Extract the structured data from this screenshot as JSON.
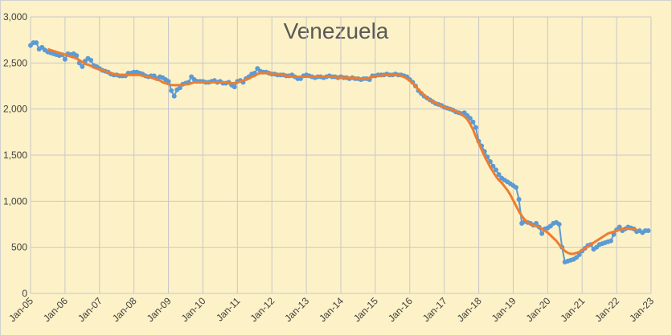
{
  "chart_data": {
    "type": "line",
    "title": "Venezuela",
    "categories": [
      "Jan-05",
      null,
      null,
      null,
      null,
      null,
      null,
      null,
      null,
      null,
      null,
      null,
      "Jan-06",
      null,
      null,
      null,
      null,
      null,
      null,
      null,
      null,
      null,
      null,
      null,
      "Jan-07",
      null,
      null,
      null,
      null,
      null,
      null,
      null,
      null,
      null,
      null,
      null,
      "Jan-08",
      null,
      null,
      null,
      null,
      null,
      null,
      null,
      null,
      null,
      null,
      null,
      "Jan-09",
      null,
      null,
      null,
      null,
      null,
      null,
      null,
      null,
      null,
      null,
      null,
      "Jan-10",
      null,
      null,
      null,
      null,
      null,
      null,
      null,
      null,
      null,
      null,
      null,
      "Jan-11",
      null,
      null,
      null,
      null,
      null,
      null,
      null,
      null,
      null,
      null,
      null,
      "Jan-12",
      null,
      null,
      null,
      null,
      null,
      null,
      null,
      null,
      null,
      null,
      null,
      "Jan-13",
      null,
      null,
      null,
      null,
      null,
      null,
      null,
      null,
      null,
      null,
      null,
      "Jan-14",
      null,
      null,
      null,
      null,
      null,
      null,
      null,
      null,
      null,
      null,
      null,
      "Jan-15",
      null,
      null,
      null,
      null,
      null,
      null,
      null,
      null,
      null,
      null,
      null,
      "Jan-16",
      null,
      null,
      null,
      null,
      null,
      null,
      null,
      null,
      null,
      null,
      null,
      "Jan-17",
      null,
      null,
      null,
      null,
      null,
      null,
      null,
      null,
      null,
      null,
      null,
      "Jan-18",
      null,
      null,
      null,
      null,
      null,
      null,
      null,
      null,
      null,
      null,
      null,
      "Jan-19",
      null,
      null,
      null,
      null,
      null,
      null,
      null,
      null,
      null,
      null,
      null,
      "Jan-20",
      null,
      null,
      null,
      null,
      null,
      null,
      null,
      null,
      null,
      null,
      null,
      "Jan-21",
      null,
      null,
      null,
      null,
      null,
      null,
      null,
      null,
      null,
      null,
      null,
      "Jan-22",
      null,
      null,
      null,
      null,
      null,
      null,
      null,
      null,
      null,
      null,
      null,
      "Jan-23"
    ],
    "series": [
      {
        "color": "#5b9bd5",
        "markers": true,
        "values": [
          2690,
          2720,
          2720,
          2650,
          2670,
          2640,
          2620,
          2610,
          2600,
          2590,
          2580,
          2590,
          2540,
          2600,
          2590,
          2600,
          2580,
          2500,
          2460,
          2520,
          2550,
          2530,
          2470,
          2460,
          2440,
          2420,
          2410,
          2400,
          2380,
          2370,
          2370,
          2360,
          2360,
          2360,
          2390,
          2390,
          2400,
          2400,
          2390,
          2380,
          2360,
          2350,
          2360,
          2360,
          2330,
          2350,
          2340,
          2320,
          2300,
          2200,
          2140,
          2210,
          2230,
          2270,
          2280,
          2290,
          2350,
          2320,
          2300,
          2300,
          2300,
          2290,
          2290,
          2300,
          2310,
          2290,
          2300,
          2280,
          2280,
          2290,
          2260,
          2240,
          2300,
          2310,
          2290,
          2330,
          2350,
          2380,
          2390,
          2440,
          2410,
          2400,
          2400,
          2390,
          2380,
          2380,
          2370,
          2370,
          2370,
          2360,
          2360,
          2370,
          2350,
          2330,
          2330,
          2360,
          2370,
          2360,
          2350,
          2340,
          2350,
          2350,
          2340,
          2350,
          2360,
          2350,
          2350,
          2340,
          2350,
          2340,
          2340,
          2330,
          2340,
          2330,
          2330,
          2320,
          2330,
          2330,
          2320,
          2360,
          2360,
          2370,
          2370,
          2370,
          2380,
          2370,
          2370,
          2380,
          2370,
          2370,
          2360,
          2350,
          2320,
          2290,
          2250,
          2200,
          2170,
          2140,
          2120,
          2100,
          2080,
          2060,
          2050,
          2040,
          2020,
          2010,
          2000,
          1990,
          1970,
          1960,
          1950,
          1960,
          1930,
          1900,
          1860,
          1800,
          1650,
          1600,
          1540,
          1480,
          1430,
          1380,
          1340,
          1290,
          1250,
          1230,
          1210,
          1190,
          1170,
          1150,
          1020,
          760,
          780,
          770,
          760,
          740,
          760,
          720,
          650,
          700,
          710,
          730,
          760,
          770,
          750,
          500,
          340,
          350,
          360,
          370,
          390,
          420,
          460,
          490,
          520,
          530,
          480,
          500,
          530,
          540,
          550,
          560,
          570,
          640,
          690,
          720,
          680,
          700,
          720,
          710,
          700,
          670,
          680,
          660,
          680,
          680,
          null
        ]
      },
      {
        "color": "#ed7d31",
        "markers": false,
        "values": [
          null,
          null,
          null,
          null,
          null,
          null,
          2650,
          2640,
          2630,
          2620,
          2610,
          2600,
          2590,
          2580,
          2570,
          2560,
          2550,
          2530,
          2510,
          2490,
          2480,
          2470,
          2450,
          2440,
          2430,
          2420,
          2410,
          2400,
          2390,
          2380,
          2370,
          2370,
          2370,
          2370,
          2370,
          2370,
          2370,
          2370,
          2370,
          2360,
          2360,
          2350,
          2340,
          2330,
          2320,
          2310,
          2290,
          2280,
          2270,
          2260,
          2260,
          2260,
          2260,
          2260,
          2270,
          2270,
          2280,
          2290,
          2290,
          2290,
          2290,
          2290,
          2290,
          2290,
          2290,
          2290,
          2290,
          2290,
          2290,
          2280,
          2280,
          2280,
          2290,
          2300,
          2310,
          2320,
          2330,
          2350,
          2360,
          2380,
          2390,
          2390,
          2390,
          2390,
          2380,
          2380,
          2380,
          2370,
          2370,
          2360,
          2360,
          2350,
          2350,
          2350,
          2350,
          2350,
          2350,
          2350,
          2350,
          2350,
          2350,
          2350,
          2350,
          2350,
          2350,
          2350,
          2350,
          2340,
          2340,
          2340,
          2340,
          2340,
          2340,
          2340,
          2330,
          2330,
          2330,
          2330,
          2340,
          2350,
          2360,
          2360,
          2360,
          2370,
          2370,
          2370,
          2370,
          2370,
          2370,
          2360,
          2350,
          2330,
          2310,
          2280,
          2250,
          2210,
          2180,
          2150,
          2120,
          2100,
          2080,
          2070,
          2050,
          2030,
          2020,
          2010,
          2000,
          1990,
          1980,
          1960,
          1940,
          1920,
          1890,
          1840,
          1780,
          1700,
          1630,
          1560,
          1490,
          1430,
          1370,
          1320,
          1270,
          1230,
          1200,
          1160,
          1120,
          1070,
          1010,
          950,
          890,
          840,
          800,
          770,
          750,
          740,
          730,
          720,
          700,
          680,
          660,
          630,
          600,
          570,
          530,
          490,
          460,
          440,
          430,
          430,
          440,
          450,
          470,
          490,
          510,
          530,
          550,
          570,
          590,
          610,
          630,
          650,
          660,
          670,
          680,
          690,
          700,
          700,
          700,
          700,
          700,
          690,
          null,
          null,
          null,
          null,
          null
        ]
      }
    ],
    "ylim": [
      0,
      3000
    ],
    "yticks": [
      0,
      500,
      {
        "value": 1000,
        "label": "1,000"
      },
      {
        "value": 1500,
        "label": "1,500"
      },
      {
        "value": 2000,
        "label": "2,000"
      },
      {
        "value": 2500,
        "label": "2,500"
      },
      {
        "value": 3000,
        "label": "3,000"
      }
    ],
    "grid": true
  }
}
